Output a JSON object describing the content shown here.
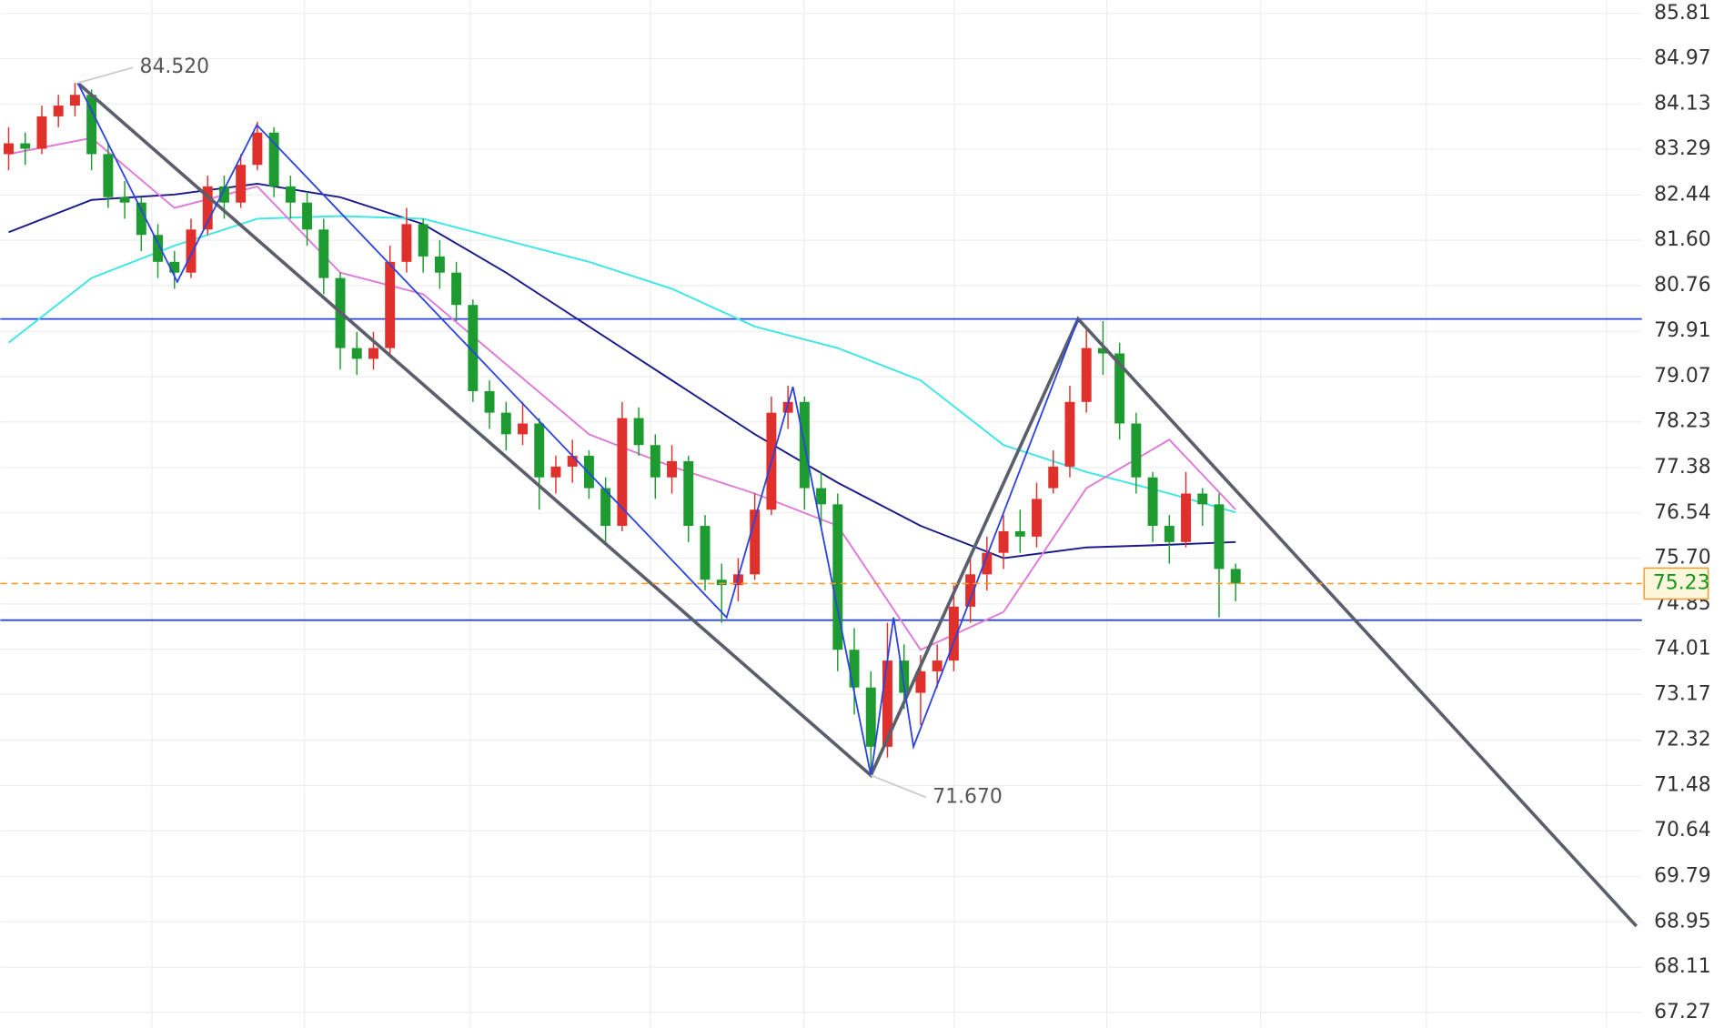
{
  "chart_data": {
    "type": "candlestick",
    "xlim": [
      0,
      99
    ],
    "ylim": [
      66.98,
      86.06
    ],
    "yticks": [
      85.81,
      84.97,
      84.13,
      83.29,
      82.44,
      {
        "value": 81.6,
        "label": "81.60"
      },
      80.76,
      79.91,
      79.07,
      78.23,
      77.38,
      76.54,
      {
        "value": 75.7,
        "label": "75.70"
      },
      74.85,
      74.01,
      73.17,
      72.32,
      71.48,
      70.64,
      69.79,
      68.95,
      68.11,
      67.27
    ],
    "up_color": "#e0302b",
    "down_color": "#1e9b30",
    "candles": {
      "open": [
        83.2,
        83.4,
        83.3,
        83.9,
        84.1,
        84.3,
        83.2,
        82.4,
        82.3,
        81.7,
        81.2,
        81.0,
        81.8,
        82.6,
        82.3,
        83.0,
        83.6,
        82.6,
        82.3,
        81.8,
        80.9,
        79.6,
        79.4,
        79.6,
        81.2,
        81.9,
        81.3,
        81.0,
        80.4,
        78.8,
        78.4,
        78.0,
        78.2,
        77.2,
        77.4,
        77.6,
        77.0,
        76.3,
        78.3,
        77.8,
        77.2,
        77.5,
        76.3,
        75.3,
        75.2,
        75.4,
        76.6,
        78.4,
        78.6,
        77.0,
        76.7,
        74.0,
        73.3,
        72.2,
        73.8,
        73.2,
        73.6,
        73.8,
        74.8,
        75.4,
        75.8,
        76.2,
        76.1,
        77.0,
        77.4,
        78.6,
        79.6,
        79.5,
        78.2,
        77.2,
        76.3,
        76.0,
        76.9,
        76.7,
        75.5
      ],
      "high": [
        83.7,
        83.6,
        84.1,
        84.3,
        84.52,
        84.4,
        83.4,
        82.7,
        82.4,
        81.9,
        81.4,
        82.0,
        82.8,
        82.8,
        83.2,
        83.8,
        83.7,
        82.8,
        82.5,
        82.0,
        81.0,
        79.9,
        79.9,
        81.5,
        82.2,
        82.0,
        81.6,
        81.2,
        80.5,
        79.0,
        78.6,
        78.6,
        78.3,
        77.6,
        77.9,
        77.7,
        77.2,
        78.6,
        78.5,
        78.0,
        77.8,
        77.6,
        76.5,
        75.6,
        75.7,
        76.9,
        78.7,
        78.9,
        78.7,
        77.3,
        76.9,
        74.4,
        73.6,
        74.5,
        74.1,
        73.9,
        74.1,
        75.2,
        75.7,
        76.1,
        76.5,
        76.6,
        77.1,
        77.7,
        78.9,
        80.0,
        80.1,
        79.7,
        78.4,
        77.3,
        76.5,
        77.3,
        77.0,
        76.9,
        75.6
      ],
      "low": [
        82.9,
        83.0,
        83.2,
        83.7,
        83.9,
        82.9,
        82.2,
        82.0,
        81.4,
        80.9,
        80.7,
        80.9,
        81.7,
        82.0,
        82.2,
        82.9,
        82.4,
        82.0,
        81.5,
        80.6,
        79.2,
        79.1,
        79.2,
        79.5,
        81.0,
        81.0,
        80.7,
        80.1,
        78.6,
        78.1,
        77.7,
        77.8,
        76.6,
        76.9,
        77.1,
        76.8,
        76.0,
        76.2,
        77.6,
        76.8,
        76.9,
        76.0,
        75.1,
        74.5,
        74.9,
        75.3,
        76.5,
        78.1,
        76.6,
        76.3,
        73.6,
        72.8,
        71.67,
        72.0,
        72.9,
        72.6,
        73.3,
        73.6,
        74.5,
        75.1,
        75.5,
        75.8,
        75.9,
        76.9,
        77.2,
        78.4,
        79.1,
        77.9,
        76.9,
        76.0,
        75.6,
        75.9,
        76.3,
        74.6,
        74.9
      ],
      "close": [
        83.4,
        83.3,
        83.9,
        84.1,
        84.3,
        83.2,
        82.4,
        82.3,
        81.7,
        81.2,
        81.0,
        81.8,
        82.6,
        82.3,
        83.0,
        83.6,
        82.6,
        82.3,
        81.8,
        80.9,
        79.6,
        79.4,
        79.6,
        81.2,
        81.9,
        81.3,
        81.0,
        80.4,
        78.8,
        78.4,
        78.0,
        78.2,
        77.2,
        77.4,
        77.6,
        77.0,
        76.3,
        78.3,
        77.8,
        77.2,
        77.5,
        76.3,
        75.3,
        75.2,
        75.4,
        76.6,
        78.4,
        78.6,
        77.0,
        76.7,
        74.0,
        73.3,
        72.2,
        73.8,
        73.2,
        73.6,
        73.8,
        74.8,
        75.4,
        75.8,
        76.2,
        76.1,
        76.8,
        77.4,
        78.6,
        79.6,
        79.5,
        78.2,
        77.2,
        76.3,
        76.0,
        76.9,
        76.7,
        75.5,
        75.23
      ]
    },
    "series": [
      {
        "color": "#1a1a8c",
        "x": [
          0.5,
          5.5,
          10.5,
          15.5,
          20.5,
          25.5,
          30.5,
          35.5,
          40.5,
          45.5,
          50.5,
          55.5,
          60.5,
          65.5,
          70.5,
          74.5
        ],
        "values": [
          81.75,
          82.35,
          82.45,
          82.65,
          82.4,
          81.9,
          81.0,
          80.0,
          79.0,
          78.0,
          77.1,
          76.3,
          75.7,
          75.9,
          75.95,
          76.0
        ]
      },
      {
        "color": "#3ee6e6",
        "x": [
          0.5,
          5.5,
          10.5,
          15.5,
          20.5,
          25.5,
          30.5,
          35.5,
          40.5,
          45.5,
          50.5,
          55.5,
          60.5,
          65.5,
          70.5,
          74.5
        ],
        "values": [
          79.7,
          80.9,
          81.5,
          82.0,
          82.05,
          82.0,
          81.6,
          81.2,
          80.7,
          80.0,
          79.6,
          79.0,
          77.8,
          77.3,
          76.9,
          76.55
        ]
      },
      {
        "color": "#e07ad8",
        "x": [
          0.5,
          5.5,
          10.5,
          15.5,
          20.5,
          25.5,
          30.5,
          35.5,
          40.5,
          45.5,
          50.5,
          55.5,
          60.5,
          65.5,
          70.5,
          74.5
        ],
        "values": [
          83.2,
          83.5,
          82.2,
          82.6,
          81.0,
          80.6,
          79.3,
          78.0,
          77.4,
          76.9,
          76.3,
          74.0,
          74.7,
          77.0,
          77.9,
          76.6
        ]
      }
    ],
    "levels": [
      {
        "value": 80.14,
        "color": "#2b44e0"
      },
      {
        "value": 74.55,
        "color": "#2b44e0"
      }
    ],
    "current_price": {
      "value": 75.23,
      "color": "#f39a2b",
      "text_color": "#129a1f"
    },
    "drawings": [
      {
        "color": "#5a5f6b",
        "x": [
          4.67,
          52.5,
          65.0,
          98.67
        ],
        "values": [
          84.52,
          71.67,
          80.14,
          68.87
        ]
      },
      {
        "color": "#2b44e0",
        "x": [
          4.67,
          10.67,
          15.47,
          43.8,
          47.8,
          52.5,
          53.87,
          55.07,
          65.0
        ],
        "values": [
          84.52,
          80.83,
          83.74,
          74.6,
          78.88,
          71.67,
          74.6,
          72.2,
          80.14
        ]
      }
    ],
    "annotations": [
      {
        "label": "84.520",
        "value": 84.52,
        "x": 4.67
      },
      {
        "label": "71.670",
        "value": 71.67,
        "x": 52.5
      }
    ]
  }
}
